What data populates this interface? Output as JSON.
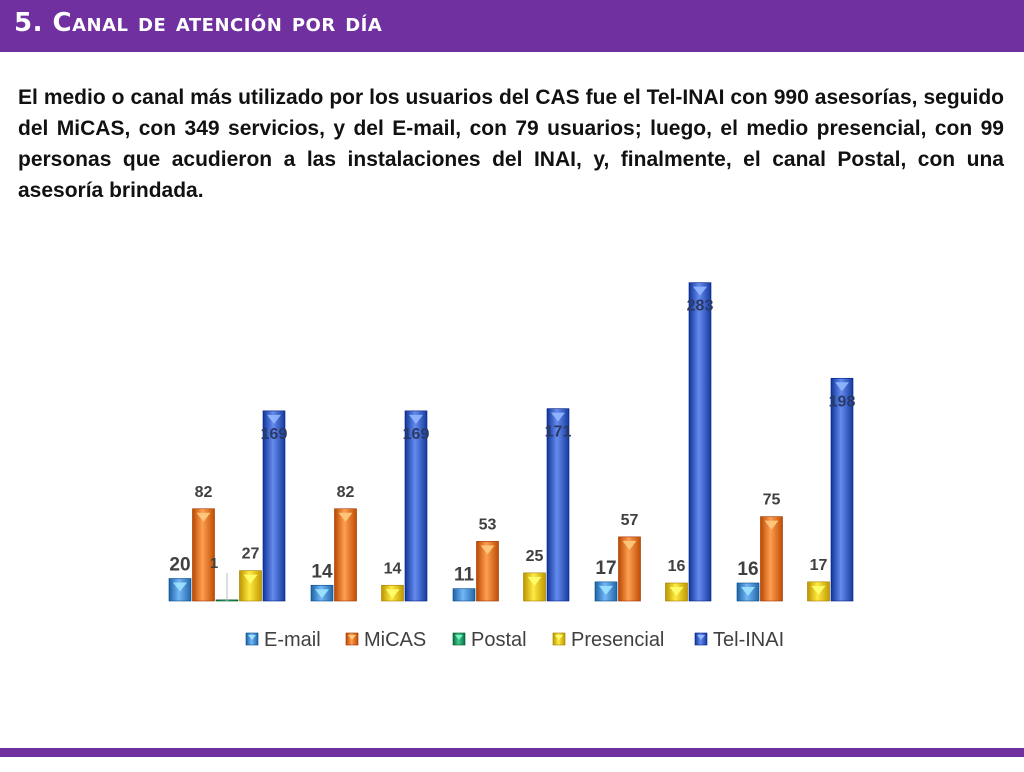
{
  "slide": {
    "title": "5. Canal de atención por día",
    "paragraph": "El medio o canal más utilizado por los usuarios del CAS fue el Tel-INAI con 990 asesorías, seguido del MiCAS, con 349 servicios, y del E-mail, con 79 usuarios; luego, el medio presencial, con 99 personas que acudieron a las instalaciones del INAI, y, finalmente, el canal Postal, con una asesoría brindada."
  },
  "colors": {
    "title_bar": "#7030a0",
    "E-mail": "#4a8fd0",
    "MiCAS": "#e6762a",
    "Postal": "#1f9e6a",
    "Presencial": "#e8c21a",
    "Tel-INAI": "#3d63c7"
  },
  "chart_data": {
    "type": "bar",
    "categories": [
      "",
      "",
      "",
      "",
      ""
    ],
    "series": [
      {
        "name": "E-mail",
        "values": [
          20,
          14,
          11,
          17,
          16
        ]
      },
      {
        "name": "MiCAS",
        "values": [
          82,
          82,
          53,
          57,
          75
        ]
      },
      {
        "name": "Postal",
        "values": [
          1,
          0,
          0,
          0,
          0
        ]
      },
      {
        "name": "Presencial",
        "values": [
          27,
          14,
          25,
          16,
          17
        ]
      },
      {
        "name": "Tel-INAI",
        "values": [
          169,
          169,
          171,
          283,
          198
        ]
      }
    ],
    "title": "",
    "xlabel": "",
    "ylabel": "",
    "ylim": [
      0,
      283
    ],
    "grid": false,
    "legend": "bottom"
  }
}
